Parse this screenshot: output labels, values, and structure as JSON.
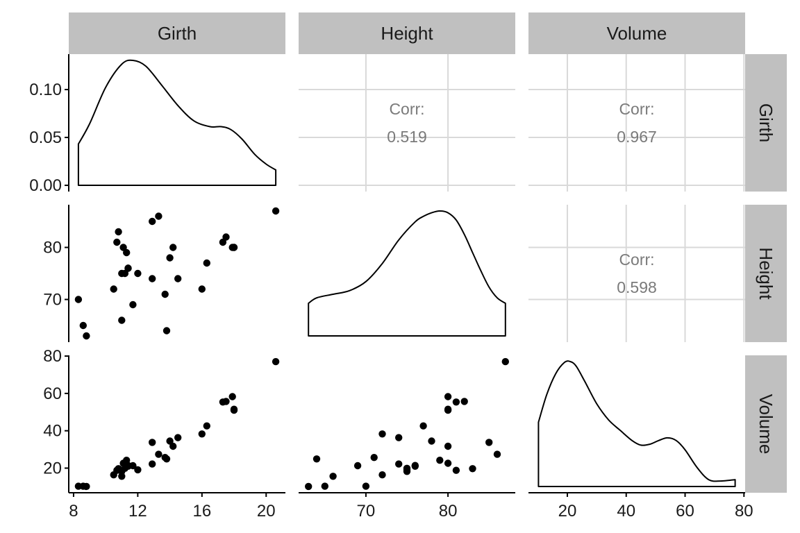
{
  "chart_data": {
    "type": "scatter-matrix",
    "variables": [
      "Girth",
      "Height",
      "Volume"
    ],
    "colors": {
      "strip": "#c0c0c0",
      "point": "#000000",
      "grid": "#d9d9d9",
      "corr_text": "#7a7a7a",
      "line": "#000000"
    },
    "observations": [
      {
        "Girth": 8.3,
        "Height": 70,
        "Volume": 10.3
      },
      {
        "Girth": 8.6,
        "Height": 65,
        "Volume": 10.3
      },
      {
        "Girth": 8.8,
        "Height": 63,
        "Volume": 10.2
      },
      {
        "Girth": 10.5,
        "Height": 72,
        "Volume": 16.4
      },
      {
        "Girth": 10.7,
        "Height": 81,
        "Volume": 18.8
      },
      {
        "Girth": 10.8,
        "Height": 83,
        "Volume": 19.7
      },
      {
        "Girth": 11.0,
        "Height": 66,
        "Volume": 15.6
      },
      {
        "Girth": 11.0,
        "Height": 75,
        "Volume": 18.2
      },
      {
        "Girth": 11.1,
        "Height": 80,
        "Volume": 22.6
      },
      {
        "Girth": 11.2,
        "Height": 75,
        "Volume": 19.9
      },
      {
        "Girth": 11.3,
        "Height": 79,
        "Volume": 24.2
      },
      {
        "Girth": 11.4,
        "Height": 76,
        "Volume": 21.0
      },
      {
        "Girth": 11.4,
        "Height": 76,
        "Volume": 21.4
      },
      {
        "Girth": 11.7,
        "Height": 69,
        "Volume": 21.3
      },
      {
        "Girth": 12.0,
        "Height": 75,
        "Volume": 19.1
      },
      {
        "Girth": 12.9,
        "Height": 74,
        "Volume": 22.2
      },
      {
        "Girth": 12.9,
        "Height": 85,
        "Volume": 33.8
      },
      {
        "Girth": 13.3,
        "Height": 86,
        "Volume": 27.4
      },
      {
        "Girth": 13.7,
        "Height": 71,
        "Volume": 25.7
      },
      {
        "Girth": 13.8,
        "Height": 64,
        "Volume": 24.9
      },
      {
        "Girth": 14.0,
        "Height": 78,
        "Volume": 34.5
      },
      {
        "Girth": 14.2,
        "Height": 80,
        "Volume": 31.7
      },
      {
        "Girth": 14.5,
        "Height": 74,
        "Volume": 36.3
      },
      {
        "Girth": 16.0,
        "Height": 72,
        "Volume": 38.3
      },
      {
        "Girth": 16.3,
        "Height": 77,
        "Volume": 42.6
      },
      {
        "Girth": 17.3,
        "Height": 81,
        "Volume": 55.4
      },
      {
        "Girth": 17.5,
        "Height": 82,
        "Volume": 55.7
      },
      {
        "Girth": 17.9,
        "Height": 80,
        "Volume": 58.3
      },
      {
        "Girth": 18.0,
        "Height": 80,
        "Volume": 51.5
      },
      {
        "Girth": 18.0,
        "Height": 80,
        "Volume": 51.0
      },
      {
        "Girth": 20.6,
        "Height": 87,
        "Volume": 77.0
      }
    ],
    "correlations": [
      {
        "row": "Girth",
        "col": "Height",
        "label": "Corr:",
        "value": "0.519"
      },
      {
        "row": "Girth",
        "col": "Volume",
        "label": "Corr:",
        "value": "0.967"
      },
      {
        "row": "Height",
        "col": "Volume",
        "label": "Corr:",
        "value": "0.598"
      }
    ],
    "x_axes": {
      "Girth": {
        "range": [
          7.7,
          21.2
        ],
        "ticks": [
          "8",
          "12",
          "16",
          "20"
        ],
        "tick_values": [
          8,
          12,
          16,
          20
        ]
      },
      "Height": {
        "range": [
          61.8,
          88.2
        ],
        "ticks": [
          "70",
          "80"
        ],
        "tick_values": [
          70,
          80
        ]
      },
      "Volume": {
        "range": [
          6.8,
          80.4
        ],
        "ticks": [
          "20",
          "40",
          "60",
          "80"
        ],
        "tick_values": [
          20,
          40,
          60,
          80
        ]
      }
    },
    "y_axes": {
      "Girth": {
        "range": [
          -0.0065,
          0.137
        ],
        "ticks": [
          "0.00",
          "0.05",
          "0.10"
        ],
        "tick_values": [
          0.0,
          0.05,
          0.1
        ]
      },
      "Height": {
        "range": [
          61.8,
          88.2
        ],
        "ticks": [
          "70",
          "80"
        ],
        "tick_values": [
          70,
          80
        ]
      },
      "Volume": {
        "range": [
          6.8,
          80.4
        ],
        "ticks": [
          "20",
          "40",
          "60",
          "80"
        ],
        "tick_values": [
          20,
          40,
          60,
          80
        ]
      }
    },
    "densities": {
      "Girth": {
        "x": [
          8.3,
          9.0,
          10.0,
          11.0,
          11.7,
          12.5,
          13.5,
          14.5,
          15.5,
          16.5,
          17.2,
          17.8,
          18.5,
          19.3,
          20.0,
          20.6
        ],
        "y": [
          0.043,
          0.064,
          0.102,
          0.126,
          0.13,
          0.124,
          0.104,
          0.083,
          0.067,
          0.061,
          0.061,
          0.058,
          0.048,
          0.032,
          0.022,
          0.016
        ]
      },
      "Height": {
        "x": [
          63,
          64,
          66,
          68,
          70,
          72,
          74,
          76,
          77,
          78,
          79,
          80,
          81,
          82,
          83,
          84,
          85,
          86,
          87
        ],
        "y": [
          0.018,
          0.021,
          0.023,
          0.025,
          0.03,
          0.04,
          0.053,
          0.063,
          0.066,
          0.068,
          0.069,
          0.068,
          0.064,
          0.056,
          0.046,
          0.036,
          0.027,
          0.021,
          0.018
        ]
      },
      "Volume": {
        "x": [
          10.2,
          13,
          16,
          19,
          21,
          23,
          26,
          30,
          34,
          38,
          42,
          45,
          48,
          51,
          54,
          57,
          60,
          64,
          68,
          72,
          77
        ],
        "y": [
          0.014,
          0.02,
          0.0245,
          0.027,
          0.0272,
          0.0262,
          0.0228,
          0.018,
          0.0145,
          0.0122,
          0.01,
          0.009,
          0.0092,
          0.01,
          0.0106,
          0.01,
          0.008,
          0.0042,
          0.0015,
          0.0012,
          0.0015
        ]
      }
    }
  }
}
